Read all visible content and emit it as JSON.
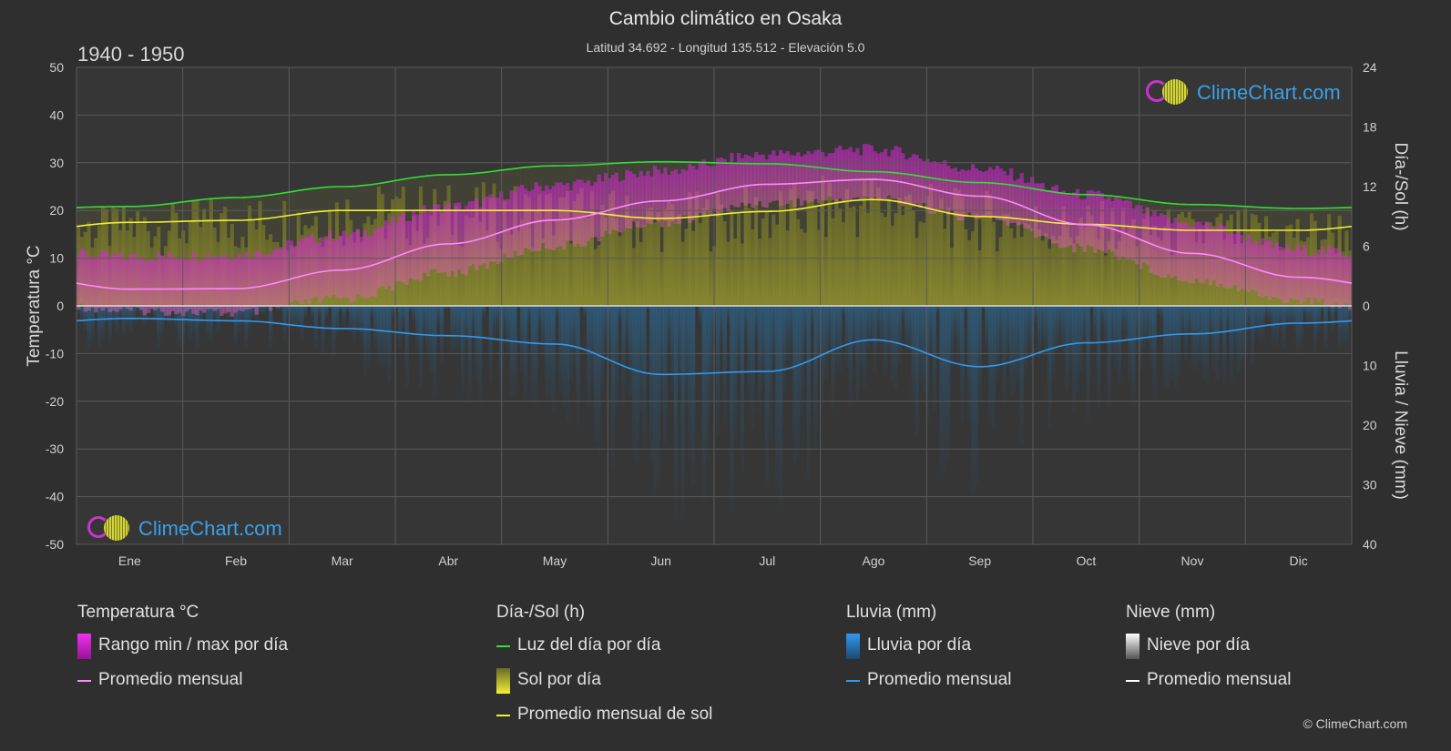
{
  "header": {
    "title": "Cambio climático en Osaka",
    "subtitle": "Latitud 34.692 - Longitud 135.512 - Elevación 5.0",
    "period": "1940 - 1950"
  },
  "logo": {
    "text": "ClimeChart.com"
  },
  "copyright": "© ClimeChart.com",
  "colors": {
    "background": "#2f2f2f",
    "temp_range": "#dd22dd",
    "temp_avg": "#ff88ff",
    "daylight": "#33dd33",
    "sunshine": "#c8c83a",
    "sun_avg": "#f0f033",
    "rain": "#2a7fbf",
    "rain_avg": "#3399ee",
    "snow": "#cccccc",
    "snow_avg": "#ffffff"
  },
  "chart_data": {
    "type": "line",
    "categories": [
      "Ene",
      "Feb",
      "Mar",
      "Abr",
      "May",
      "Jun",
      "Jul",
      "Ago",
      "Sep",
      "Oct",
      "Nov",
      "Dic"
    ],
    "y_left": {
      "label": "Temperatura °C",
      "range": [
        -50,
        50
      ],
      "ticks": [
        50,
        40,
        30,
        20,
        10,
        0,
        -10,
        -20,
        -30,
        -40,
        -50
      ]
    },
    "y_right_top": {
      "label": "Día-/Sol (h)",
      "range": [
        0,
        24
      ],
      "ticks": [
        24,
        18,
        12,
        6,
        0
      ]
    },
    "y_right_bottom": {
      "label": "Lluvia / Nieve (mm)",
      "range": [
        0,
        40
      ],
      "ticks": [
        0,
        10,
        20,
        30,
        40
      ]
    },
    "series": [
      {
        "name": "Luz del día por día",
        "unit": "h",
        "values": [
          10.0,
          10.9,
          12.0,
          13.2,
          14.1,
          14.5,
          14.3,
          13.5,
          12.4,
          11.2,
          10.2,
          9.8
        ]
      },
      {
        "name": "Promedio mensual de sol",
        "unit": "h",
        "values": [
          8.4,
          8.6,
          9.6,
          9.6,
          9.6,
          8.8,
          9.5,
          10.7,
          9.0,
          8.2,
          7.6,
          7.6
        ]
      },
      {
        "name": "Promedio mensual",
        "group": "Temperatura °C",
        "unit": "°C",
        "values": [
          3.5,
          3.6,
          7.5,
          13.0,
          18.0,
          22.0,
          25.5,
          26.5,
          23.0,
          17.0,
          11.0,
          6.0
        ]
      },
      {
        "name": "Rango min / max por día",
        "unit": "°C",
        "min": [
          0.0,
          -0.5,
          2.5,
          8.0,
          13.5,
          18.5,
          22.5,
          23.5,
          19.5,
          13.0,
          6.5,
          2.0
        ],
        "max": [
          9.0,
          9.5,
          13.5,
          19.5,
          24.0,
          27.0,
          30.5,
          31.5,
          27.5,
          22.0,
          16.0,
          10.5
        ]
      },
      {
        "name": "Promedio mensual",
        "group": "Lluvia (mm)",
        "unit": "mm",
        "values": [
          2.1,
          2.5,
          3.8,
          5.0,
          6.4,
          11.5,
          11.0,
          5.7,
          10.2,
          6.2,
          4.7,
          2.9
        ]
      }
    ]
  },
  "legend": {
    "groups": [
      {
        "title": "Temperatura °C",
        "items": [
          {
            "label": "Rango min / max por día",
            "kind": "box",
            "color": "#dd22dd"
          },
          {
            "label": "Promedio mensual",
            "kind": "line",
            "color": "#ff88ff"
          }
        ]
      },
      {
        "title": "Día-/Sol (h)",
        "items": [
          {
            "label": "Luz del día por día",
            "kind": "line",
            "color": "#33dd33"
          },
          {
            "label": "Sol por día",
            "kind": "box",
            "color": "#c8c83a"
          },
          {
            "label": "Promedio mensual de sol",
            "kind": "line",
            "color": "#f0f033"
          }
        ]
      },
      {
        "title": "Lluvia (mm)",
        "items": [
          {
            "label": "Lluvia por día",
            "kind": "box",
            "color": "#2a7fbf"
          },
          {
            "label": "Promedio mensual",
            "kind": "line",
            "color": "#3399ee"
          }
        ]
      },
      {
        "title": "Nieve (mm)",
        "items": [
          {
            "label": "Nieve por día",
            "kind": "box",
            "color": "#cccccc"
          },
          {
            "label": "Promedio mensual",
            "kind": "line",
            "color": "#ffffff"
          }
        ]
      }
    ]
  }
}
